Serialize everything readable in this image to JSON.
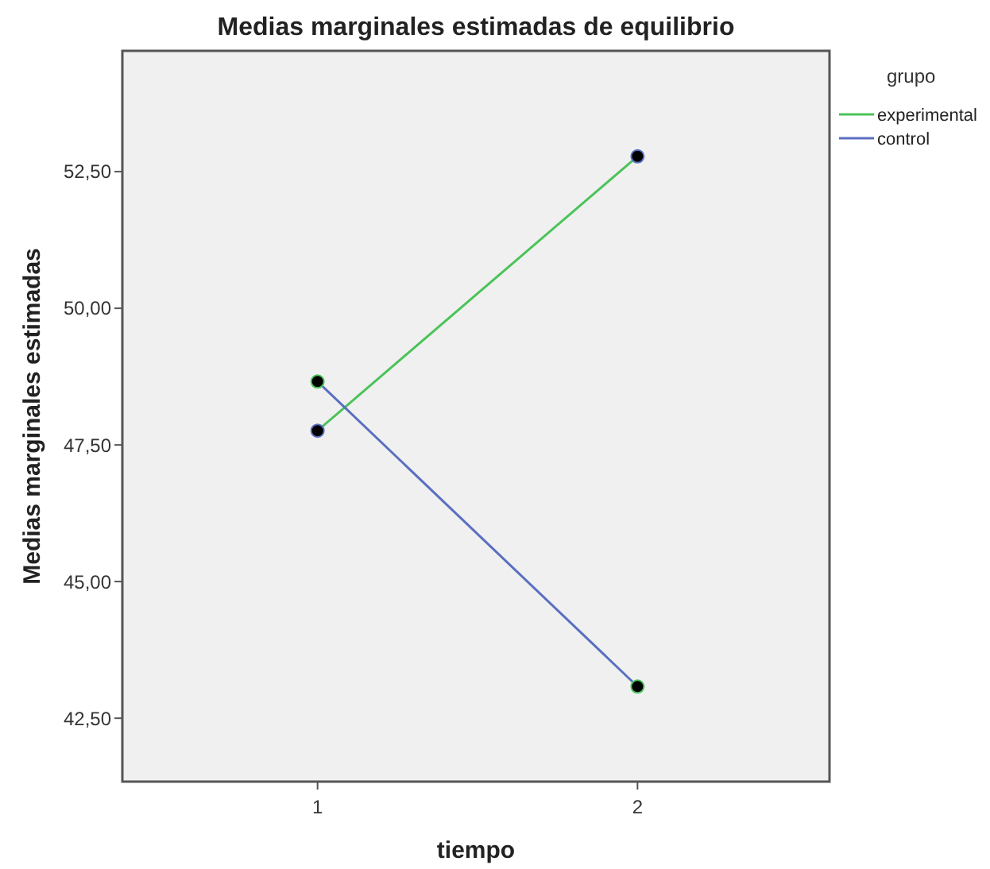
{
  "chart_data": {
    "type": "line",
    "title": "Medias marginales estimadas de equilibrio",
    "xlabel": "tiempo",
    "ylabel": "Medias marginales estimadas",
    "legend_title": "grupo",
    "categories": [
      "1",
      "2"
    ],
    "series": [
      {
        "name": "experimental",
        "color": "#4cc35a",
        "values": [
          47.76,
          52.78
        ]
      },
      {
        "name": "control",
        "color": "#5a6fc0",
        "values": [
          48.66,
          43.08
        ]
      }
    ],
    "ylim": [
      41.34,
      54.71
    ],
    "yticks": [
      {
        "value": 42.5,
        "label": "42,50"
      },
      {
        "value": 45,
        "label": "45,00"
      },
      {
        "value": 47.5,
        "label": "47,50"
      },
      {
        "value": 50,
        "label": "50,00"
      },
      {
        "value": 52.5,
        "label": "52,50"
      }
    ],
    "marker": "circle",
    "legend": "top right",
    "grid": false
  }
}
